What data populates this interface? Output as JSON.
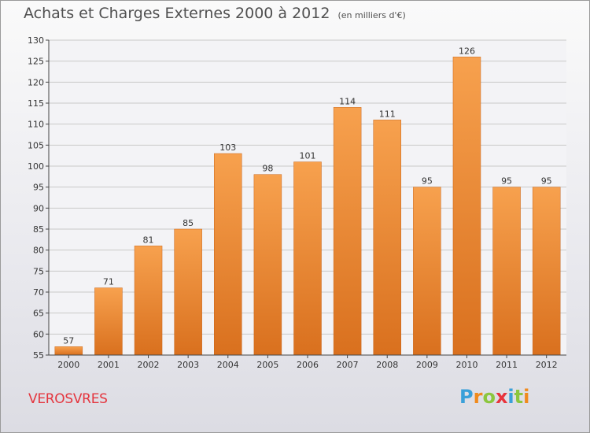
{
  "header": {
    "title": "Achats et Charges Externes 2000 à 2012",
    "unit": "(en milliers d'€)"
  },
  "footer": {
    "place": "VEROSVRES",
    "logo_letters": [
      "P",
      "r",
      "o",
      "x",
      "i",
      "t",
      "i"
    ],
    "logo_colors": [
      "#3aa0d9",
      "#f08a1c",
      "#8cc63e",
      "#e8343c",
      "#3aa0d9",
      "#8cc63e",
      "#f08a1c"
    ]
  },
  "colors": {
    "bar_light": "#f7a14e",
    "bar_dark": "#d9701e",
    "grid": "#c8c8c8",
    "axis": "#444444"
  },
  "chart_data": {
    "type": "bar",
    "title": "Achats et Charges Externes 2000 à 2012",
    "categories": [
      "2000",
      "2001",
      "2002",
      "2003",
      "2004",
      "2005",
      "2006",
      "2007",
      "2008",
      "2009",
      "2010",
      "2011",
      "2012"
    ],
    "values": [
      57,
      71,
      81,
      85,
      103,
      98,
      101,
      114,
      111,
      95,
      126,
      95,
      95
    ],
    "ylim": [
      55,
      130
    ],
    "yticks": [
      55,
      60,
      65,
      70,
      75,
      80,
      85,
      90,
      95,
      100,
      105,
      110,
      115,
      120,
      125,
      130
    ],
    "grid": true
  }
}
